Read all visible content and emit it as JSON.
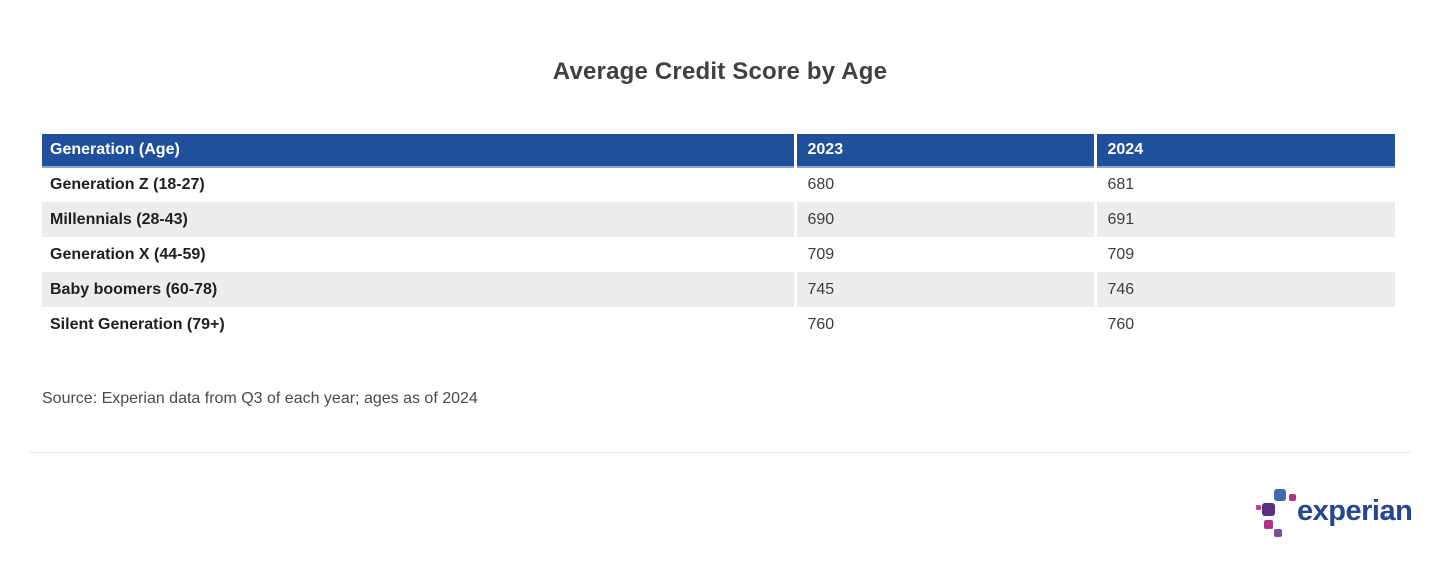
{
  "title": "Average Credit Score by Age",
  "source": "Source: Experian data from Q3 of each year; ages as of 2024",
  "logo": {
    "text": "experian",
    "trademark": "™"
  },
  "colors": {
    "header_bg": "#1e509b",
    "header_text": "#ffffff",
    "stripe": "#ededed",
    "title_color": "#404040",
    "source_color": "#4a4a4a",
    "divider": "#e6e6e6",
    "logo_text": "#26478d",
    "logo_blue_sq": "#3c6db4",
    "logo_purple_sq": "#5b2d7f",
    "logo_magenta_sq": "#b23387",
    "logo_violet_sq": "#7c4b9e",
    "logo_pink_sq": "#c5418f"
  },
  "chart_data": {
    "type": "table",
    "title": "Average Credit Score by Age",
    "columns": [
      "Generation (Age)",
      "2023",
      "2024"
    ],
    "rows": [
      [
        "Generation Z (18-27)",
        "680",
        "681"
      ],
      [
        "Millennials (28-43)",
        "690",
        "691"
      ],
      [
        "Generation X (44-59)",
        "709",
        "709"
      ],
      [
        "Baby boomers (60-78)",
        "745",
        "746"
      ],
      [
        "Silent Generation (79+)",
        "760",
        "760"
      ]
    ],
    "source": "Source: Experian data from Q3 of each year; ages as of 2024"
  }
}
